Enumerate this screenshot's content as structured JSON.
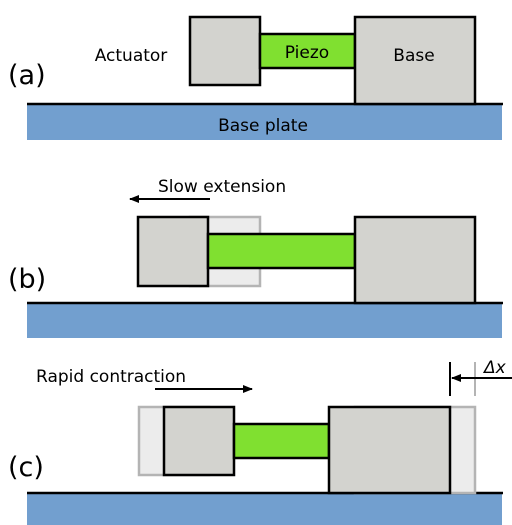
{
  "panels": [
    {
      "label": "(a)",
      "actuator": "Actuator",
      "piezo": "Piezo",
      "base": "Base",
      "plate": "Base plate"
    },
    {
      "label": "(b)",
      "motion": "Slow extension"
    },
    {
      "label": "(c)",
      "motion": "Rapid contraction",
      "displacement": "Δx"
    }
  ]
}
